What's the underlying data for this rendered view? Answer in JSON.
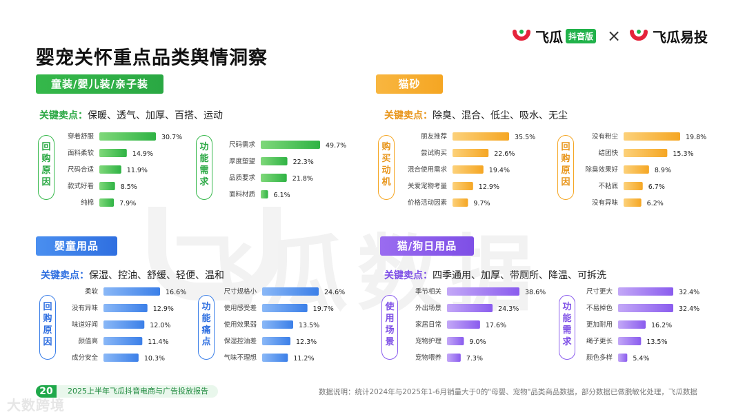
{
  "title": "婴宠关怀重点品类舆情洞察",
  "logos": {
    "left_name": "飞瓜",
    "left_badge": "抖音版",
    "times": "×",
    "right_name": "飞瓜易投"
  },
  "watermark": "飞瓜数据",
  "corner_watermark": "大数跨境",
  "footer": {
    "page": "20",
    "report": "2025上半年飞瓜抖音电商与广告投放报告"
  },
  "note": "数据说明：统计2024年与2025年1-6月销量大于0的\"母婴、宠物\"品类商品数据，部分数据已做脱敏化处理，飞瓜数据",
  "colors": {
    "green": "#35b84a",
    "orange": "#f5a623",
    "blue": "#3b7fe8",
    "purple": "#8a5cee"
  },
  "panels": [
    {
      "tag": "童装/婴儿装/亲子装",
      "kp_label": "关键卖点：",
      "kp_text": "保暖、透气、加厚、百搭、运动"
    },
    {
      "tag": "猫砂",
      "kp_label": "关键卖点：",
      "kp_text": "除臭、混合、低尘、吸水、无尘"
    },
    {
      "tag": "婴童用品",
      "kp_label": "关键卖点：",
      "kp_text": "保湿、控油、舒缓、轻便、温和"
    },
    {
      "tag": "猫/狗日用品",
      "kp_label": "关键卖点：",
      "kp_text": "四季通用、加厚、带厕所、降温、可拆洗"
    }
  ],
  "chart_data": [
    {
      "type": "bar",
      "orientation": "horizontal",
      "group": "回购原因",
      "categories": [
        "穿着舒服",
        "面料柔软",
        "尺码合适",
        "款式好看",
        "纯棉"
      ],
      "values": [
        30.7,
        14.9,
        11.9,
        8.5,
        7.9
      ],
      "value_labels": [
        "30.7%",
        "14.9%",
        "11.9%",
        "8.5%",
        "7.9%"
      ],
      "color": "green"
    },
    {
      "type": "bar",
      "orientation": "horizontal",
      "group": "功能需求",
      "categories": [
        "尺码需求",
        "厚度塑望",
        "品质要求",
        "面料材质"
      ],
      "values": [
        49.7,
        22.3,
        21.8,
        6.1
      ],
      "value_labels": [
        "49.7%",
        "22.3%",
        "21.8%",
        "6.1%"
      ],
      "color": "green"
    },
    {
      "type": "bar",
      "orientation": "horizontal",
      "group": "购买动机",
      "categories": [
        "朋友推荐",
        "尝试购买",
        "混合使用需求",
        "关爱宠物考量",
        "价格活动因素"
      ],
      "values": [
        35.5,
        22.6,
        19.4,
        12.9,
        9.7
      ],
      "value_labels": [
        "35.5%",
        "22.6%",
        "19.4%",
        "12.9%",
        "9.7%"
      ],
      "color": "orange"
    },
    {
      "type": "bar",
      "orientation": "horizontal",
      "group": "回购原因",
      "categories": [
        "没有粉尘",
        "结团快",
        "除臭效果好",
        "不粘底",
        "没有异味"
      ],
      "values": [
        19.8,
        15.3,
        8.9,
        6.7,
        6.2
      ],
      "value_labels": [
        "19.8%",
        "15.3%",
        "8.9%",
        "6.7%",
        "6.2%"
      ],
      "color": "orange"
    },
    {
      "type": "bar",
      "orientation": "horizontal",
      "group": "回购原因",
      "categories": [
        "柔软",
        "没有异味",
        "味道好闻",
        "颜值高",
        "成分安全"
      ],
      "values": [
        16.6,
        12.9,
        12.0,
        11.4,
        10.3
      ],
      "value_labels": [
        "16.6%",
        "12.9%",
        "12.0%",
        "11.4%",
        "10.3%"
      ],
      "color": "blue"
    },
    {
      "type": "bar",
      "orientation": "horizontal",
      "group": "功能痛点",
      "categories": [
        "尺寸规格小",
        "使用感受差",
        "使用效果弱",
        "保湿控油差",
        "气味不理想"
      ],
      "values": [
        24.6,
        19.7,
        13.5,
        12.3,
        11.2
      ],
      "value_labels": [
        "24.6%",
        "19.7%",
        "13.5%",
        "12.3%",
        "11.2%"
      ],
      "color": "blue"
    },
    {
      "type": "bar",
      "orientation": "horizontal",
      "group": "使用场景",
      "categories": [
        "季节相关",
        "外出场景",
        "家居日常",
        "宠物护理",
        "宠物喂养"
      ],
      "values": [
        38.6,
        24.3,
        17.6,
        9.0,
        7.3
      ],
      "value_labels": [
        "38.6%",
        "24.3%",
        "17.6%",
        "9.0%",
        "7.3%"
      ],
      "color": "purple"
    },
    {
      "type": "bar",
      "orientation": "horizontal",
      "group": "功能需求",
      "categories": [
        "尺寸更大",
        "不易掉色",
        "更加耐用",
        "绳子更长",
        "颜色多样"
      ],
      "values": [
        32.4,
        32.4,
        16.2,
        13.5,
        5.4
      ],
      "value_labels": [
        "32.4%",
        "32.4%",
        "16.2%",
        "13.5%",
        "5.4%"
      ],
      "color": "purple"
    }
  ]
}
